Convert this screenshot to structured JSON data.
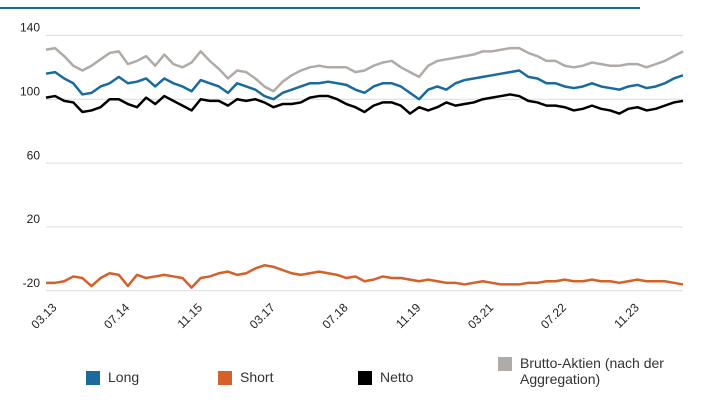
{
  "chart_data": {
    "type": "line",
    "categories": [
      null,
      "03.13",
      null,
      null,
      null,
      null,
      null,
      null,
      null,
      "07.14",
      null,
      null,
      null,
      null,
      null,
      null,
      null,
      "11.15",
      null,
      null,
      null,
      null,
      null,
      null,
      null,
      "03.17",
      null,
      null,
      null,
      null,
      null,
      null,
      null,
      "07.18",
      null,
      null,
      null,
      null,
      null,
      null,
      null,
      "11.19",
      null,
      null,
      null,
      null,
      null,
      null,
      null,
      "03.21",
      null,
      null,
      null,
      null,
      null,
      null,
      null,
      "07.22",
      null,
      null,
      null,
      null,
      null,
      null,
      null,
      "11.23",
      null,
      null,
      null,
      null,
      null
    ],
    "series": [
      {
        "name": "Long",
        "color": "#1a6b9b",
        "values": [
          116,
          117,
          113,
          110,
          103,
          104,
          108,
          110,
          114,
          110,
          111,
          113,
          108,
          113,
          110,
          108,
          105,
          112,
          110,
          108,
          104,
          110,
          108,
          106,
          102,
          100,
          104,
          106,
          108,
          110,
          110,
          111,
          110,
          109,
          106,
          104,
          108,
          110,
          110,
          108,
          104,
          100,
          106,
          108,
          106,
          110,
          112,
          113,
          114,
          115,
          116,
          117,
          118,
          114,
          113,
          110,
          110,
          108,
          107,
          108,
          110,
          108,
          107,
          106,
          108,
          109,
          107,
          108,
          110,
          113,
          115
        ]
      },
      {
        "name": "Short",
        "color": "#d4602a",
        "values": [
          -15,
          -15,
          -14,
          -11,
          -12,
          -17,
          -12,
          -9,
          -10,
          -17,
          -10,
          -12,
          -11,
          -10,
          -11,
          -12,
          -18,
          -12,
          -11,
          -9,
          -8,
          -10,
          -9,
          -6,
          -4,
          -5,
          -7,
          -9,
          -10,
          -9,
          -8,
          -9,
          -10,
          -12,
          -11,
          -14,
          -13,
          -11,
          -12,
          -12,
          -13,
          -14,
          -13,
          -14,
          -15,
          -15,
          -16,
          -15,
          -14,
          -15,
          -16,
          -16,
          -16,
          -15,
          -15,
          -14,
          -14,
          -13,
          -14,
          -14,
          -13,
          -14,
          -14,
          -15,
          -14,
          -13,
          -14,
          -14,
          -14,
          -15,
          -16
        ]
      },
      {
        "name": "Netto",
        "color": "#000000",
        "values": [
          101,
          102,
          99,
          98,
          92,
          93,
          95,
          100,
          100,
          97,
          95,
          101,
          97,
          102,
          99,
          96,
          93,
          100,
          99,
          99,
          96,
          100,
          99,
          100,
          98,
          95,
          97,
          97,
          98,
          101,
          102,
          102,
          100,
          97,
          95,
          92,
          96,
          98,
          98,
          96,
          91,
          95,
          93,
          95,
          98,
          96,
          97,
          98,
          100,
          101,
          102,
          103,
          102,
          99,
          98,
          96,
          96,
          95,
          93,
          94,
          96,
          94,
          93,
          91,
          94,
          95,
          93,
          94,
          96,
          98,
          99
        ]
      },
      {
        "name": "Brutto-Aktien (nach der Aggregation)",
        "color": "#b0aba7",
        "values": [
          131,
          132,
          127,
          121,
          118,
          121,
          125,
          129,
          130,
          122,
          124,
          127,
          121,
          128,
          122,
          120,
          123,
          130,
          124,
          119,
          113,
          118,
          117,
          113,
          108,
          105,
          111,
          115,
          118,
          120,
          121,
          120,
          120,
          120,
          117,
          118,
          121,
          123,
          124,
          120,
          117,
          114,
          121,
          124,
          125,
          126,
          127,
          128,
          130,
          130,
          131,
          132,
          132,
          129,
          127,
          124,
          124,
          121,
          120,
          121,
          123,
          122,
          121,
          121,
          122,
          122,
          120,
          122,
          124,
          127,
          130
        ]
      }
    ],
    "ylim": [
      -22,
      144
    ],
    "yticks": [
      -20,
      20,
      60,
      100,
      140
    ],
    "grid": true
  }
}
